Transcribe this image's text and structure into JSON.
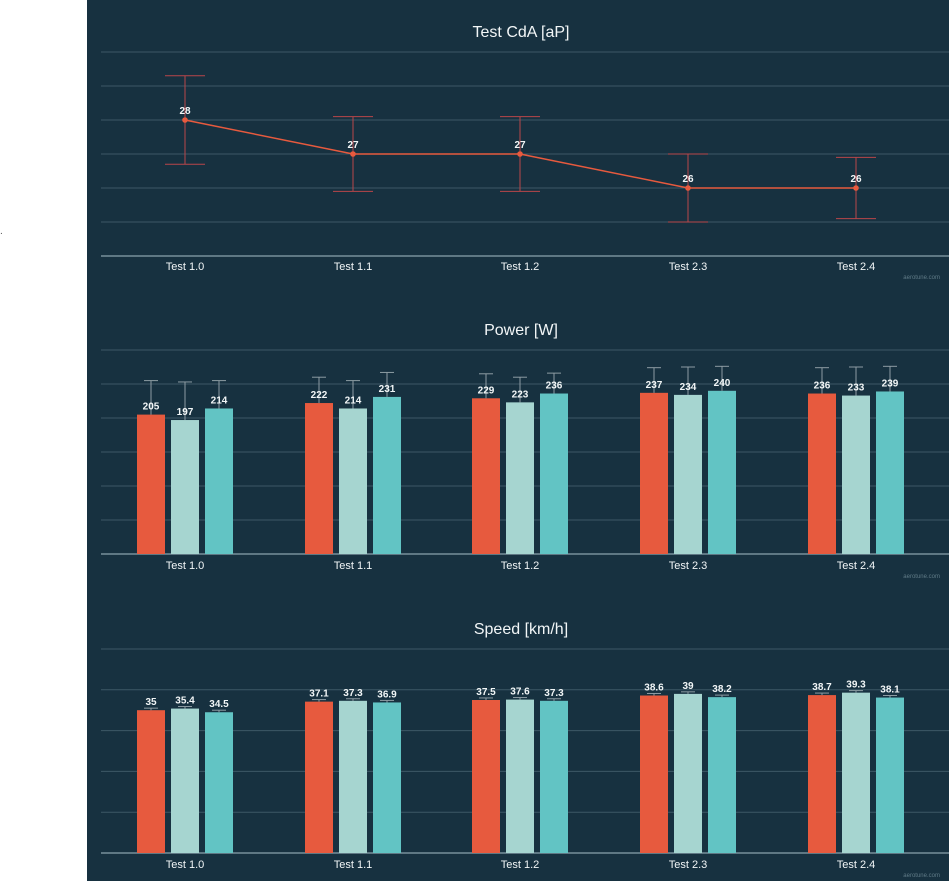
{
  "page": {
    "stray_mark": "."
  },
  "chart_data": [
    {
      "type": "line",
      "title": "Test CdA [aP]",
      "categories": [
        "Test 1.0",
        "Test 1.1",
        "Test 1.2",
        "Test 2.3",
        "Test 2.4"
      ],
      "series": [
        {
          "values": [
            28,
            27,
            27,
            26,
            26
          ],
          "error_low": [
            26.7,
            25.9,
            25.9,
            25.0,
            25.1
          ],
          "error_high": [
            29.3,
            28.1,
            28.1,
            27.0,
            26.9
          ],
          "color": "#e75a3e"
        }
      ],
      "ylim": [
        24,
        30
      ],
      "grid": true,
      "watermark": "aerotune.com"
    },
    {
      "type": "bar",
      "title": "Power [W]",
      "categories": [
        "Test 1.0",
        "Test 1.1",
        "Test 1.2",
        "Test 2.3",
        "Test 2.4"
      ],
      "series": [
        {
          "values": [
            205,
            222,
            229,
            237,
            236
          ],
          "error_high": [
            255,
            260,
            265,
            274,
            274
          ],
          "color": "#e75a3e"
        },
        {
          "values": [
            197,
            214,
            223,
            234,
            233
          ],
          "error_high": [
            253,
            255,
            260,
            275,
            275
          ],
          "color": "#a6d5d0"
        },
        {
          "values": [
            214,
            231,
            236,
            240,
            239
          ],
          "error_high": [
            255,
            267,
            266,
            276,
            276
          ],
          "color": "#62c4c4"
        }
      ],
      "ylim": [
        0,
        300
      ],
      "grid": true,
      "watermark": "aerotune.com"
    },
    {
      "type": "bar",
      "title": "Speed [km/h]",
      "categories": [
        "Test 1.0",
        "Test 1.1",
        "Test 1.2",
        "Test 2.3",
        "Test 2.4"
      ],
      "series": [
        {
          "values": [
            35,
            37.1,
            37.5,
            38.6,
            38.7
          ],
          "error_high": [
            35.5,
            37.6,
            38.0,
            39.1,
            39.2
          ],
          "color": "#e75a3e"
        },
        {
          "values": [
            35.4,
            37.3,
            37.6,
            39,
            39.3
          ],
          "error_high": [
            35.9,
            37.8,
            38.1,
            39.5,
            39.8
          ],
          "color": "#a6d5d0"
        },
        {
          "values": [
            34.5,
            36.9,
            37.3,
            38.2,
            38.1
          ],
          "error_high": [
            35.0,
            37.4,
            37.8,
            38.7,
            38.6
          ],
          "color": "#62c4c4"
        }
      ],
      "ylim": [
        0,
        50
      ],
      "grid": true,
      "watermark": "aerotune.com"
    }
  ]
}
